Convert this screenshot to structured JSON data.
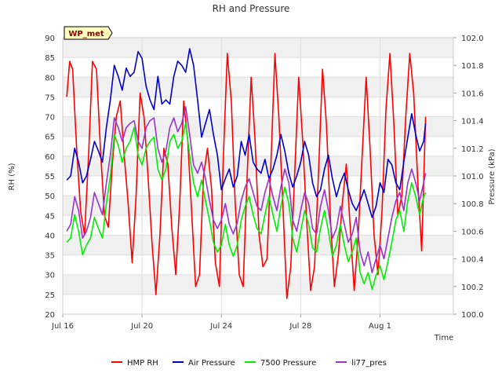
{
  "chart_data": {
    "type": "line",
    "title": "RH and Pressure",
    "badge": "WP_met",
    "xlabel": "Time",
    "ylabel_left": "RH (%)",
    "ylabel_right": "Pressure (kPa)",
    "ylim_left": [
      20,
      90
    ],
    "ylim_right": [
      100.0,
      102.0
    ],
    "xlim": [
      0.0,
      19.7
    ],
    "x_ticks": [
      {
        "x": 0,
        "label": "Jul 16"
      },
      {
        "x": 4,
        "label": "Jul 20"
      },
      {
        "x": 8,
        "label": "Jul 24"
      },
      {
        "x": 12,
        "label": "Jul 28"
      },
      {
        "x": 16,
        "label": "Aug 1"
      }
    ],
    "y_ticks_left": [
      20,
      25,
      30,
      35,
      40,
      45,
      50,
      55,
      60,
      65,
      70,
      75,
      80,
      85,
      90
    ],
    "y_ticks_right": [
      100.0,
      100.2,
      100.4,
      100.6,
      100.8,
      101.0,
      101.2,
      101.4,
      101.6,
      101.8,
      102.0
    ],
    "grid": true,
    "legend_position": "bottom",
    "series": [
      {
        "name": "HMP RH",
        "axis": "left",
        "color": "#ff0000",
        "x": [
          0.2,
          0.35,
          0.5,
          0.7,
          0.9,
          1.1,
          1.3,
          1.5,
          1.7,
          1.9,
          2.1,
          2.3,
          2.5,
          2.7,
          2.9,
          3.1,
          3.3,
          3.5,
          3.7,
          3.9,
          4.1,
          4.3,
          4.5,
          4.7,
          4.9,
          5.1,
          5.3,
          5.5,
          5.7,
          5.9,
          6.1,
          6.3,
          6.5,
          6.7,
          6.9,
          7.1,
          7.3,
          7.5,
          7.7,
          7.9,
          8.1,
          8.3,
          8.5,
          8.7,
          8.9,
          9.1,
          9.3,
          9.5,
          9.7,
          9.9,
          10.1,
          10.3,
          10.5,
          10.7,
          10.9,
          11.1,
          11.3,
          11.5,
          11.7,
          11.9,
          12.1,
          12.3,
          12.5,
          12.7,
          12.9,
          13.1,
          13.3,
          13.5,
          13.7,
          13.9,
          14.1,
          14.3,
          14.5,
          14.7,
          14.9,
          15.1,
          15.3,
          15.5,
          15.7,
          15.9,
          16.1,
          16.3,
          16.5,
          16.7,
          16.9,
          17.1,
          17.3,
          17.5,
          17.7,
          17.9,
          18.1,
          18.3
        ],
        "y": [
          75,
          84,
          82,
          62,
          46,
          40,
          60,
          84,
          82,
          62,
          45,
          42,
          58,
          70,
          74,
          60,
          48,
          33,
          50,
          76,
          70,
          55,
          38,
          25,
          40,
          62,
          58,
          42,
          30,
          48,
          74,
          64,
          46,
          27,
          30,
          55,
          62,
          52,
          33,
          27,
          60,
          86,
          74,
          48,
          30,
          27,
          55,
          80,
          64,
          40,
          32,
          34,
          58,
          86,
          70,
          48,
          24,
          32,
          56,
          80,
          64,
          44,
          26,
          32,
          56,
          82,
          68,
          44,
          27,
          35,
          48,
          58,
          42,
          26,
          40,
          60,
          80,
          62,
          40,
          30,
          46,
          72,
          86,
          68,
          45,
          50,
          70,
          86,
          76,
          54,
          36,
          70
        ]
      },
      {
        "name": "Air Pressure",
        "axis": "right",
        "color": "#0000cc",
        "x": [
          0.2,
          0.4,
          0.6,
          0.8,
          1.0,
          1.2,
          1.4,
          1.6,
          1.8,
          2.0,
          2.2,
          2.4,
          2.6,
          2.8,
          3.0,
          3.2,
          3.4,
          3.6,
          3.8,
          4.0,
          4.2,
          4.4,
          4.6,
          4.8,
          5.0,
          5.2,
          5.4,
          5.6,
          5.8,
          6.0,
          6.2,
          6.4,
          6.6,
          6.8,
          7.0,
          7.2,
          7.4,
          7.6,
          7.8,
          8.0,
          8.2,
          8.4,
          8.6,
          8.8,
          9.0,
          9.2,
          9.4,
          9.6,
          9.8,
          10.0,
          10.2,
          10.4,
          10.6,
          10.8,
          11.0,
          11.2,
          11.4,
          11.6,
          11.8,
          12.0,
          12.2,
          12.4,
          12.6,
          12.8,
          13.0,
          13.2,
          13.4,
          13.6,
          13.8,
          14.0,
          14.2,
          14.4,
          14.6,
          14.8,
          15.0,
          15.2,
          15.4,
          15.6,
          15.8,
          16.0,
          16.2,
          16.4,
          16.6,
          16.8,
          17.0,
          17.2,
          17.4,
          17.6,
          17.8,
          18.0,
          18.2,
          18.3
        ],
        "y": [
          100.97,
          101.0,
          101.2,
          101.1,
          100.95,
          101.0,
          101.12,
          101.25,
          101.18,
          101.1,
          101.35,
          101.55,
          101.8,
          101.72,
          101.62,
          101.78,
          101.72,
          101.75,
          101.9,
          101.85,
          101.65,
          101.55,
          101.48,
          101.72,
          101.52,
          101.55,
          101.52,
          101.72,
          101.83,
          101.8,
          101.75,
          101.92,
          101.8,
          101.55,
          101.28,
          101.38,
          101.48,
          101.3,
          101.15,
          100.9,
          100.98,
          101.05,
          100.92,
          101.0,
          101.25,
          101.15,
          101.3,
          101.1,
          101.05,
          101.02,
          101.12,
          100.98,
          101.05,
          101.15,
          101.3,
          101.18,
          101.02,
          100.92,
          101.0,
          101.1,
          101.25,
          101.15,
          100.95,
          100.85,
          100.9,
          101.05,
          101.15,
          100.98,
          100.85,
          100.95,
          101.02,
          100.9,
          100.8,
          100.75,
          100.82,
          100.9,
          100.8,
          100.7,
          100.78,
          100.95,
          100.88,
          101.12,
          101.08,
          100.95,
          100.9,
          101.1,
          101.28,
          101.45,
          101.3,
          101.18,
          101.25,
          101.38
        ]
      },
      {
        "name": "7500 Pressure",
        "axis": "right",
        "color": "#00ee00",
        "x": [
          0.2,
          0.4,
          0.6,
          0.8,
          1.0,
          1.2,
          1.4,
          1.6,
          1.8,
          2.0,
          2.2,
          2.4,
          2.6,
          2.8,
          3.0,
          3.2,
          3.4,
          3.6,
          3.8,
          4.0,
          4.2,
          4.4,
          4.6,
          4.8,
          5.0,
          5.2,
          5.4,
          5.6,
          5.8,
          6.0,
          6.2,
          6.4,
          6.6,
          6.8,
          7.0,
          7.2,
          7.4,
          7.6,
          7.8,
          8.0,
          8.2,
          8.4,
          8.6,
          8.8,
          9.0,
          9.2,
          9.4,
          9.6,
          9.8,
          10.0,
          10.2,
          10.4,
          10.6,
          10.8,
          11.0,
          11.2,
          11.4,
          11.6,
          11.8,
          12.0,
          12.2,
          12.4,
          12.6,
          12.8,
          13.0,
          13.2,
          13.4,
          13.6,
          13.8,
          14.0,
          14.2,
          14.4,
          14.6,
          14.8,
          15.0,
          15.2,
          15.4,
          15.6,
          15.8,
          16.0,
          16.2,
          16.4,
          16.6,
          16.8,
          17.0,
          17.2,
          17.4,
          17.6,
          17.8,
          18.0,
          18.2,
          18.3
        ],
        "y": [
          100.52,
          100.55,
          100.72,
          100.6,
          100.43,
          100.5,
          100.55,
          100.7,
          100.62,
          100.55,
          100.8,
          101.0,
          101.3,
          101.22,
          101.1,
          101.2,
          101.25,
          101.35,
          101.15,
          101.08,
          101.2,
          101.25,
          101.28,
          101.05,
          100.97,
          101.05,
          101.25,
          101.3,
          101.2,
          101.25,
          101.38,
          101.15,
          100.95,
          100.85,
          100.97,
          100.82,
          100.68,
          100.52,
          100.45,
          100.5,
          100.65,
          100.5,
          100.42,
          100.5,
          100.68,
          100.78,
          100.85,
          100.72,
          100.62,
          100.58,
          100.72,
          100.85,
          100.72,
          100.6,
          100.78,
          100.92,
          100.8,
          100.55,
          100.45,
          100.6,
          100.75,
          100.65,
          100.48,
          100.45,
          100.62,
          100.75,
          100.6,
          100.42,
          100.5,
          100.65,
          100.5,
          100.38,
          100.45,
          100.55,
          100.3,
          100.22,
          100.3,
          100.18,
          100.28,
          100.35,
          100.25,
          100.38,
          100.52,
          100.68,
          100.75,
          100.6,
          100.82,
          100.95,
          100.85,
          100.72,
          100.85,
          100.88
        ]
      },
      {
        "name": "li77_pres",
        "axis": "right",
        "color": "#9933cc",
        "x": [
          0.2,
          0.4,
          0.6,
          0.8,
          1.0,
          1.2,
          1.4,
          1.6,
          1.8,
          2.0,
          2.2,
          2.4,
          2.6,
          2.8,
          3.0,
          3.2,
          3.4,
          3.6,
          3.8,
          4.0,
          4.2,
          4.4,
          4.6,
          4.8,
          5.0,
          5.2,
          5.4,
          5.6,
          5.8,
          6.0,
          6.2,
          6.4,
          6.6,
          6.8,
          7.0,
          7.2,
          7.4,
          7.6,
          7.8,
          8.0,
          8.2,
          8.4,
          8.6,
          8.8,
          9.0,
          9.2,
          9.4,
          9.6,
          9.8,
          10.0,
          10.2,
          10.4,
          10.6,
          10.8,
          11.0,
          11.2,
          11.4,
          11.6,
          11.8,
          12.0,
          12.2,
          12.4,
          12.6,
          12.8,
          13.0,
          13.2,
          13.4,
          13.6,
          13.8,
          14.0,
          14.2,
          14.4,
          14.6,
          14.8,
          15.0,
          15.2,
          15.4,
          15.6,
          15.8,
          16.0,
          16.2,
          16.4,
          16.6,
          16.8,
          17.0,
          17.2,
          17.4,
          17.6,
          17.8,
          18.0,
          18.2,
          18.3
        ],
        "y": [
          100.6,
          100.65,
          100.85,
          100.75,
          100.55,
          100.6,
          100.7,
          100.88,
          100.8,
          100.72,
          100.95,
          101.15,
          101.42,
          101.35,
          101.25,
          101.35,
          101.38,
          101.4,
          101.25,
          101.2,
          101.35,
          101.4,
          101.42,
          101.2,
          101.1,
          101.18,
          101.35,
          101.42,
          101.32,
          101.38,
          101.5,
          101.3,
          101.08,
          101.02,
          101.1,
          100.98,
          100.82,
          100.68,
          100.62,
          100.68,
          100.8,
          100.65,
          100.58,
          100.66,
          100.82,
          100.92,
          100.98,
          100.88,
          100.78,
          100.75,
          100.88,
          100.98,
          100.85,
          100.75,
          100.92,
          101.05,
          100.95,
          100.68,
          100.6,
          100.75,
          100.88,
          100.8,
          100.62,
          100.58,
          100.78,
          100.9,
          100.75,
          100.55,
          100.62,
          100.78,
          100.65,
          100.52,
          100.58,
          100.7,
          100.45,
          100.35,
          100.45,
          100.3,
          100.4,
          100.5,
          100.4,
          100.55,
          100.7,
          100.82,
          100.88,
          100.75,
          100.95,
          101.05,
          100.95,
          100.82,
          100.95,
          101.02
        ]
      }
    ]
  }
}
